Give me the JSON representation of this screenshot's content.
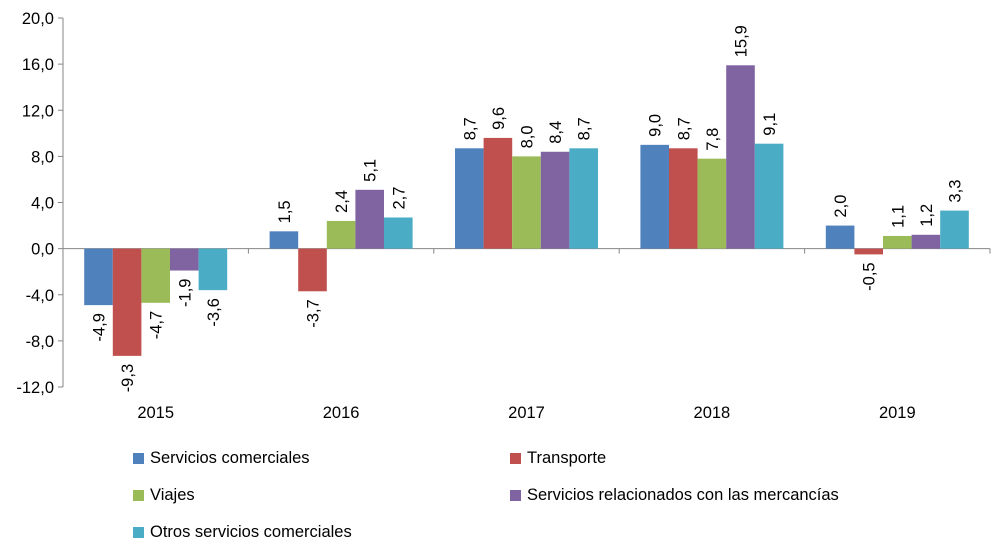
{
  "chart_data": {
    "type": "bar",
    "title": "",
    "xlabel": "",
    "ylabel": "",
    "categories": [
      "2015",
      "2016",
      "2017",
      "2018",
      "2019"
    ],
    "ylim": [
      -12.0,
      20.0
    ],
    "yticks": [
      -12.0,
      -8.0,
      -4.0,
      0.0,
      4.0,
      8.0,
      12.0,
      16.0,
      20.0
    ],
    "ytick_labels": [
      "-12,0",
      "-8,0",
      "-4,0",
      "0,0",
      "4,0",
      "8,0",
      "12,0",
      "16,0",
      "20,0"
    ],
    "grid": false,
    "legend_position": "bottom",
    "data_labels": true,
    "series": [
      {
        "name": "Servicios comerciales",
        "color": "#4f81bd",
        "values": [
          -4.9,
          1.5,
          8.7,
          9.0,
          2.0
        ],
        "labels": [
          "-4,9",
          "1,5",
          "8,7",
          "9,0",
          "2,0"
        ]
      },
      {
        "name": "Transporte",
        "color": "#c0504d",
        "values": [
          -9.3,
          -3.7,
          9.6,
          8.7,
          -0.5
        ],
        "labels": [
          "-9,3",
          "-3,7",
          "9,6",
          "8,7",
          "-0,5"
        ]
      },
      {
        "name": "Viajes",
        "color": "#9bbb59",
        "values": [
          -4.7,
          2.4,
          8.0,
          7.8,
          1.1
        ],
        "labels": [
          "-4,7",
          "2,4",
          "8,0",
          "7,8",
          "1,1"
        ]
      },
      {
        "name": "Servicios relacionados con las mercancías",
        "color": "#8064a2",
        "values": [
          -1.9,
          5.1,
          8.4,
          15.9,
          1.2
        ],
        "labels": [
          "-1,9",
          "5,1",
          "8,4",
          "15,9",
          "1,2"
        ]
      },
      {
        "name": "Otros servicios comerciales",
        "color": "#4bacc6",
        "values": [
          -3.6,
          2.7,
          8.7,
          9.1,
          3.3
        ],
        "labels": [
          "-3,6",
          "2,7",
          "8,7",
          "9,1",
          "3,3"
        ]
      }
    ]
  }
}
